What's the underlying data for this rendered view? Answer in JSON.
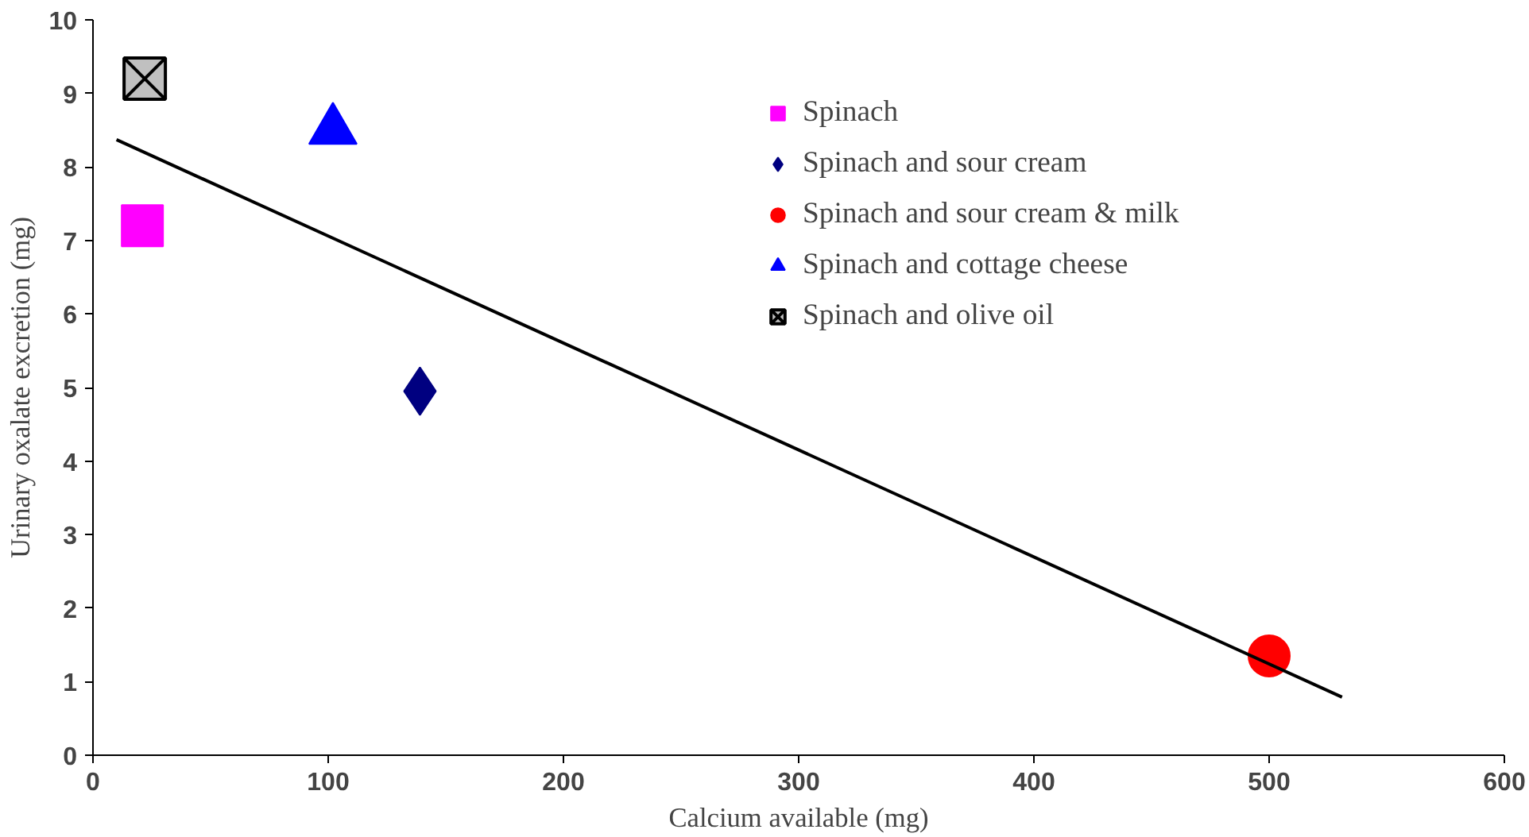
{
  "chart_data": {
    "type": "scatter",
    "xlabel": "Calcium available (mg)",
    "ylabel": "Urinary oxalate excretion (mg)",
    "xlim": [
      0,
      600
    ],
    "ylim": [
      0,
      10
    ],
    "xticks": [
      0,
      100,
      200,
      300,
      400,
      500,
      600
    ],
    "yticks": [
      0,
      1,
      2,
      3,
      4,
      5,
      6,
      7,
      8,
      9,
      10
    ],
    "grid": false,
    "legend": "top right",
    "series": [
      {
        "name": "Spinach",
        "color": "#ff00ff",
        "marker": "square",
        "x": [
          21
        ],
        "values": [
          7.2
        ]
      },
      {
        "name": "Spinach and sour cream",
        "color": "#000080",
        "marker": "diamond",
        "x": [
          139
        ],
        "values": [
          4.95
        ]
      },
      {
        "name": "Spinach and sour cream & milk",
        "color": "#ff0000",
        "marker": "circle",
        "x": [
          500
        ],
        "values": [
          1.35
        ]
      },
      {
        "name": "Spinach and cottage cheese",
        "color": "#0000ff",
        "marker": "triangle",
        "x": [
          102
        ],
        "values": [
          8.5
        ]
      },
      {
        "name": "Spinach and olive oil",
        "color": "#c0c0c0",
        "marker": "square_x",
        "x": [
          22
        ],
        "values": [
          9.2
        ]
      },
      {
        "type": "line",
        "color": "#000000",
        "x": [
          10,
          531
        ],
        "values": [
          8.37,
          0.79
        ]
      }
    ]
  }
}
